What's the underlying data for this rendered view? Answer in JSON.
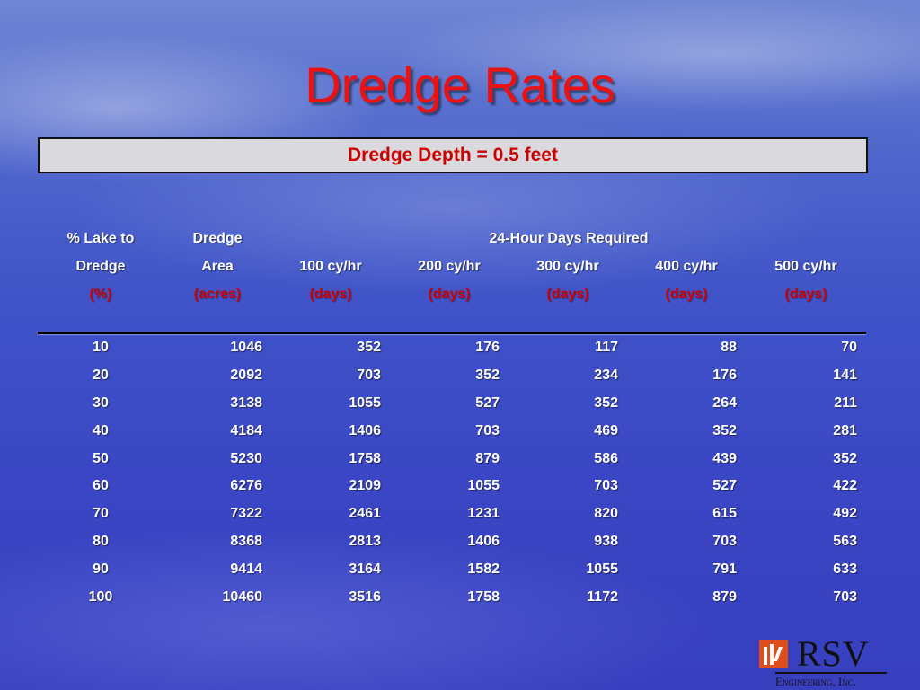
{
  "slide": {
    "title": "Dredge Rates",
    "subtitle_box": "Dredge Depth = 0.5 feet"
  },
  "table": {
    "header": {
      "row1": [
        "% Lake to",
        "Dredge",
        "24-Hour Days Required"
      ],
      "row2": [
        "Dredge",
        "Area",
        "100 cy/hr",
        "200 cy/hr",
        "300 cy/hr",
        "400 cy/hr",
        "500 cy/hr"
      ],
      "row3": [
        "(%)",
        "(acres)",
        "(days)",
        "(days)",
        "(days)",
        "(days)",
        "(days)"
      ]
    },
    "rows": [
      [
        "10",
        "1046",
        "352",
        "176",
        "117",
        "88",
        "70"
      ],
      [
        "20",
        "2092",
        "703",
        "352",
        "234",
        "176",
        "141"
      ],
      [
        "30",
        "3138",
        "1055",
        "527",
        "352",
        "264",
        "211"
      ],
      [
        "40",
        "4184",
        "1406",
        "703",
        "469",
        "352",
        "281"
      ],
      [
        "50",
        "5230",
        "1758",
        "879",
        "586",
        "439",
        "352"
      ],
      [
        "60",
        "6276",
        "2109",
        "1055",
        "703",
        "527",
        "422"
      ],
      [
        "70",
        "7322",
        "2461",
        "1231",
        "820",
        "615",
        "492"
      ],
      [
        "80",
        "8368",
        "2813",
        "1406",
        "938",
        "703",
        "563"
      ],
      [
        "90",
        "9414",
        "3164",
        "1582",
        "1055",
        "791",
        "633"
      ],
      [
        "100",
        "10460",
        "3516",
        "1758",
        "1172",
        "879",
        "703"
      ]
    ]
  },
  "logo": {
    "name": "RSV",
    "subtitle": "Engineering, Inc.",
    "mark_color": "#e04d1c"
  },
  "colors": {
    "title": "#ee1111",
    "accent_red": "#cc0000",
    "box_bg": "#d9d9de"
  }
}
